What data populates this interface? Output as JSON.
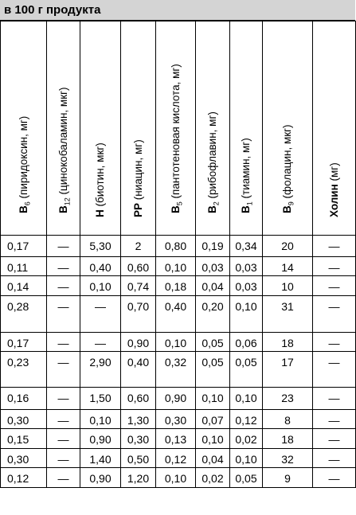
{
  "title": "в 100 г продукта",
  "columns": [
    {
      "main": "B",
      "sub": "6",
      "rest": " (пиридоксин, мг)"
    },
    {
      "main": "B",
      "sub": "12",
      "rest": " (цинокобаламин, мкг)"
    },
    {
      "main": "H",
      "sub": "",
      "rest": " (биотин, мкг)"
    },
    {
      "main": "PP",
      "sub": "",
      "rest": " (ниацин, мг)"
    },
    {
      "main": "B",
      "sub": "5",
      "rest": " (пантотеновая кислота, мг)"
    },
    {
      "main": "B",
      "sub": "2",
      "rest": " (рибофлавин, мг)"
    },
    {
      "main": "B",
      "sub": "1",
      "rest": " (тиамин, мг)"
    },
    {
      "main": "B",
      "sub": "9",
      "rest": " (фолацин, мкг)"
    },
    {
      "main": "Холин",
      "sub": "",
      "rest": " (мг)"
    }
  ],
  "rows": [
    [
      "0,17",
      "—",
      "5,30",
      "2",
      "0,80",
      "0,19",
      "0,34",
      "20",
      "—"
    ],
    [
      "0,11",
      "—",
      "0,40",
      "0,60",
      "0,10",
      "0,03",
      "0,03",
      "14",
      "—"
    ],
    [
      "0,14",
      "—",
      "0,10",
      "0,74",
      "0,18",
      "0,04",
      "0,03",
      "10",
      "—"
    ],
    [
      "0,28",
      "—",
      "—",
      "0,70",
      "0,40",
      "0,20",
      "0,10",
      "31",
      "—"
    ],
    [
      "0,17",
      "—",
      "—",
      "0,90",
      "0,10",
      "0,05",
      "0,06",
      "18",
      "—"
    ],
    [
      "0,23",
      "—",
      "2,90",
      "0,40",
      "0,32",
      "0,05",
      "0,05",
      "17",
      "—"
    ],
    [
      "0,16",
      "—",
      "1,50",
      "0,60",
      "0,90",
      "0,10",
      "0,10",
      "23",
      "—"
    ],
    [
      "0,30",
      "—",
      "0,10",
      "1,30",
      "0,30",
      "0,07",
      "0,12",
      "8",
      "—"
    ],
    [
      "0,15",
      "—",
      "0,90",
      "0,30",
      "0,13",
      "0,10",
      "0,02",
      "18",
      "—"
    ],
    [
      "0,30",
      "—",
      "1,40",
      "0,50",
      "0,12",
      "0,04",
      "0,10",
      "32",
      "—"
    ],
    [
      "0,12",
      "—",
      "0,90",
      "1,20",
      "0,10",
      "0,02",
      "0,05",
      "9",
      "—"
    ]
  ]
}
